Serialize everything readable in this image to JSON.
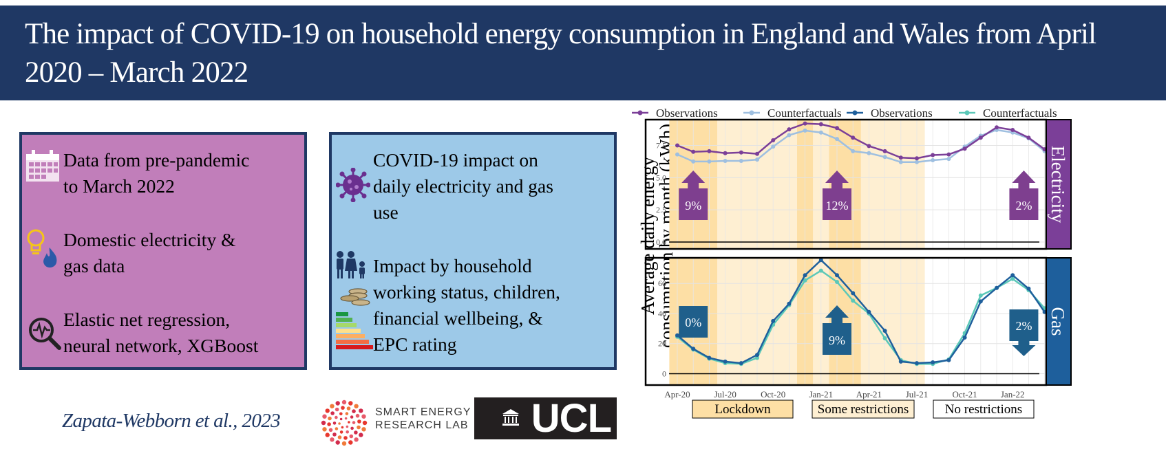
{
  "header": {
    "title": "The impact of COVID-19 on household energy consumption in England and Wales from April 2020 – March 2022"
  },
  "left_panel": {
    "items": [
      {
        "icon": "calendar-icon",
        "text_lines": [
          "Data from pre-pandemic",
          "to March 2022"
        ]
      },
      {
        "icon": "lightbulb-flame-icon",
        "text_lines": [
          "Domestic electricity &",
          "gas data"
        ]
      },
      {
        "icon": "magnifier-pulse-icon",
        "text_lines": [
          "Elastic net regression,",
          "neural network, XGBoost"
        ]
      }
    ]
  },
  "mid_panel": {
    "items": [
      {
        "icon": "virus-icon",
        "text_lines": [
          "COVID-19 impact on",
          "daily electricity and gas",
          "use"
        ]
      },
      {
        "icon": "family-coins-epc-icon",
        "text_lines": [
          "Impact by household",
          "working status, children,",
          "financial wellbeing, &",
          "EPC rating"
        ]
      }
    ]
  },
  "footer": {
    "citation": "Zapata-Webborn et al., 2023",
    "serl_text_lines": [
      "SMART ENERGY",
      "RESEARCH LAB"
    ],
    "ucl_text": "UCL"
  },
  "colors": {
    "banner": "#1f3864",
    "left_box": "#c17eba",
    "mid_box": "#9dc9e8",
    "elec_obs": "#7b3f98",
    "elec_cf": "#9ebfe0",
    "gas_obs": "#1e5f9c",
    "gas_cf": "#5bc8b8",
    "elec_arrow": "#7e3f8f",
    "gas_arrow": "#1f5f8b",
    "lockdown": "#fddfa5",
    "some_restrictions": "#feefd2"
  },
  "chart_data": {
    "type": "line",
    "ylabel": "Average daily energy consumption by month (kWh)",
    "x": [
      "Apr-20",
      "May-20",
      "Jun-20",
      "Jul-20",
      "Aug-20",
      "Sep-20",
      "Oct-20",
      "Nov-20",
      "Dec-20",
      "Jan-21",
      "Feb-21",
      "Mar-21",
      "Apr-21",
      "May-21",
      "Jun-21",
      "Jul-21",
      "Aug-21",
      "Sep-21",
      "Oct-21",
      "Nov-21",
      "Dec-21",
      "Jan-22",
      "Feb-22",
      "Mar-22"
    ],
    "x_tick_labels": [
      "Apr-20",
      "Jul-20",
      "Oct-20",
      "Jan-21",
      "Apr-21",
      "Jul-21",
      "Oct-21",
      "Jan-22"
    ],
    "legend": [
      "Observations",
      "Counterfactuals",
      "Observations",
      "Counterfactuals"
    ],
    "legend_position": "top",
    "period_labels": [
      "Lockdown",
      "Some restrictions",
      "No restrictions"
    ],
    "panels": [
      {
        "strip": "Electricity",
        "ylim": [
          0,
          9.5
        ],
        "y_ticks": [
          "0.0",
          "2.5",
          "5.0",
          "7.5"
        ],
        "series": [
          {
            "name": "Observations",
            "values": [
              7.5,
              7.0,
              7.05,
              6.9,
              6.95,
              6.85,
              7.9,
              8.75,
              9.2,
              9.15,
              8.85,
              8.1,
              7.45,
              7.05,
              6.55,
              6.5,
              6.75,
              6.8,
              7.25,
              8.1,
              8.9,
              8.7,
              8.1,
              7.2
            ]
          },
          {
            "name": "Counterfactuals",
            "values": [
              6.8,
              6.25,
              6.25,
              6.3,
              6.3,
              6.4,
              7.4,
              8.3,
              8.65,
              8.5,
              8.0,
              7.05,
              6.9,
              6.6,
              6.2,
              6.2,
              6.35,
              6.45,
              7.4,
              8.25,
              8.7,
              8.5,
              8.05,
              7.05
            ]
          }
        ],
        "annotations": [
          {
            "label": "9%",
            "direction": "up"
          },
          {
            "label": "12%",
            "direction": "up"
          },
          {
            "label": "2%",
            "direction": "up"
          }
        ]
      },
      {
        "strip": "Gas",
        "ylim": [
          -3,
          77
        ],
        "y_ticks": [
          "0",
          "20",
          "40",
          "60"
        ],
        "series": [
          {
            "name": "Observations",
            "values": [
              25.5,
              16.5,
              10.5,
              8.0,
              7.0,
              12.5,
              35.0,
              46.5,
              65.5,
              75.5,
              65.5,
              53.5,
              41.0,
              28.5,
              8.0,
              7.0,
              7.5,
              9.0,
              24.0,
              48.0,
              57.0,
              65.5,
              56.5,
              41.0
            ]
          },
          {
            "name": "Counterfactuals",
            "values": [
              24.5,
              16.0,
              10.0,
              7.0,
              6.5,
              10.5,
              32.5,
              45.5,
              62.0,
              68.5,
              61.0,
              48.5,
              40.0,
              23.5,
              9.0,
              6.5,
              6.5,
              9.5,
              27.0,
              52.0,
              57.0,
              63.0,
              55.5,
              43.5
            ]
          }
        ],
        "annotations": [
          {
            "label": "0%",
            "direction": "none"
          },
          {
            "label": "9%",
            "direction": "up"
          },
          {
            "label": "2%",
            "direction": "down"
          }
        ]
      }
    ]
  }
}
